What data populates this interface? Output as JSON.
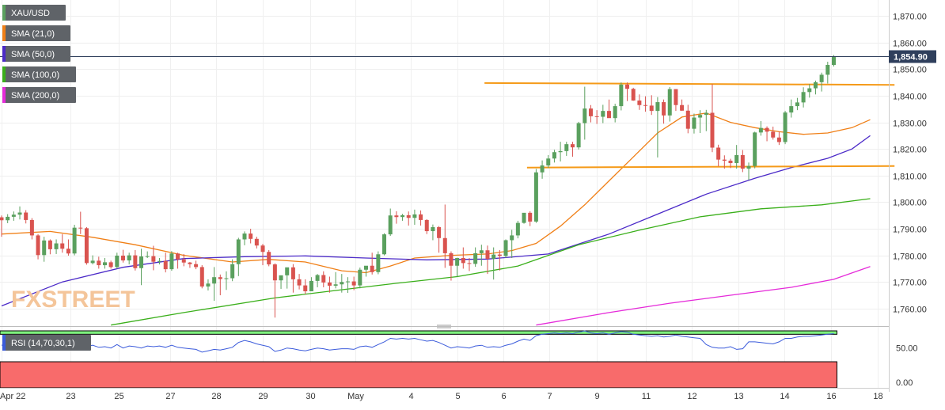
{
  "colors": {
    "bull": "#5aa05e",
    "bear": "#d9534f",
    "sma21": "#f07f16",
    "sma50": "#4b2ac8",
    "sma100": "#3aaf1a",
    "sma200": "#e52ad9",
    "rsi_line": "#3b5bdb",
    "rsi_over": "#7ef07e",
    "rsi_under": "#f86b6b",
    "price_tag": "#2f3f5c",
    "trendline": "#f59a18",
    "legend_bg": "#5f6368",
    "watermark": "#f4c59a"
  },
  "legend": [
    {
      "label": "XAU/USD",
      "color": "#5aa05e"
    },
    {
      "label": "SMA (21,0)",
      "color": "#f07f16"
    },
    {
      "label": "SMA (50,0)",
      "color": "#4b2ac8"
    },
    {
      "label": "SMA (100,0)",
      "color": "#3aaf1a"
    },
    {
      "label": "SMA (200,0)",
      "color": "#e52ad9"
    }
  ],
  "rsi_label": "RSI (14,70,30,1)",
  "watermark": "FXSTREET",
  "chart_data": {
    "type": "candlestick",
    "symbol": "XAU/USD",
    "current_price": "1,854.90",
    "current_value": 1854.9,
    "price_axis": {
      "ylim": [
        1754,
        1876
      ],
      "ticks": [
        1760,
        1770,
        1780,
        1790,
        1800,
        1810,
        1820,
        1830,
        1840,
        1850,
        1860,
        1870
      ],
      "tick_labels": [
        "1,760.00",
        "1,770.00",
        "1,780.00",
        "1,790.00",
        "1,800.00",
        "1,810.00",
        "1,820.00",
        "1,830.00",
        "1,840.00",
        "1,850.00",
        "1,860.00",
        "1,870.00"
      ]
    },
    "x_axis": {
      "labels": [
        "Apr 22",
        "23",
        "25",
        "27",
        "28",
        "29",
        "30",
        "May",
        "4",
        "5",
        "6",
        "7",
        "9",
        "11",
        "12",
        "13",
        "14",
        "16",
        "18"
      ],
      "label_index": [
        0,
        11.3,
        19.3,
        27.7,
        35.3,
        43,
        50.8,
        58.3,
        67.3,
        75,
        82.6,
        90.2,
        98,
        106,
        113.6,
        121.3,
        128.9,
        136.6,
        144.2
      ]
    },
    "candles": [
      [
        1794.3,
        1795.0,
        1787.0,
        1793.2
      ],
      [
        1793.2,
        1795.5,
        1792.1,
        1794.5
      ],
      [
        1794.5,
        1796.5,
        1793.0,
        1795.3
      ],
      [
        1795.3,
        1798.4,
        1793.5,
        1796.1
      ],
      [
        1796.1,
        1797.0,
        1792.0,
        1793.3
      ],
      [
        1793.3,
        1794.0,
        1786.0,
        1787.5
      ],
      [
        1787.5,
        1788.0,
        1778.5,
        1780.1
      ],
      [
        1780.1,
        1787.0,
        1777.6,
        1785.6
      ],
      [
        1785.6,
        1786.0,
        1780.4,
        1782.3
      ],
      [
        1782.3,
        1786.0,
        1780.5,
        1784.5
      ],
      [
        1784.5,
        1788.0,
        1781.0,
        1782.5
      ],
      [
        1782.5,
        1786.0,
        1779.9,
        1780.7
      ],
      [
        1780.7,
        1791.5,
        1780.0,
        1790.4
      ],
      [
        1790.4,
        1796.4,
        1788.0,
        1790.2
      ],
      [
        1790.2,
        1790.6,
        1776.5,
        1777.1
      ],
      [
        1777.1,
        1780.0,
        1776.6,
        1778.0
      ],
      [
        1778.0,
        1779.5,
        1775.0,
        1776.3
      ],
      [
        1776.3,
        1779.0,
        1775.0,
        1777.4
      ],
      [
        1777.4,
        1778.0,
        1775.0,
        1775.6
      ],
      [
        1775.6,
        1781.0,
        1775.0,
        1779.9
      ],
      [
        1779.9,
        1782.1,
        1777.3,
        1778.1
      ],
      [
        1778.1,
        1781.0,
        1776.6,
        1780.0
      ],
      [
        1780.0,
        1782.0,
        1774.3,
        1775.2
      ],
      [
        1775.2,
        1782.5,
        1768.8,
        1779.6
      ],
      [
        1779.6,
        1781.5,
        1779.0,
        1779.7
      ],
      [
        1779.7,
        1783.6,
        1774.4,
        1777.6
      ],
      [
        1777.6,
        1779.0,
        1776.6,
        1777.9
      ],
      [
        1777.9,
        1781.0,
        1773.6,
        1774.8
      ],
      [
        1774.8,
        1781.6,
        1774.2,
        1780.7
      ],
      [
        1780.7,
        1781.0,
        1775.0,
        1778.5
      ],
      [
        1778.5,
        1780.5,
        1775.9,
        1777.3
      ],
      [
        1777.3,
        1777.5,
        1775.3,
        1776.7
      ],
      [
        1776.7,
        1778.0,
        1774.8,
        1775.6
      ],
      [
        1775.6,
        1776.3,
        1767.6,
        1768.3
      ],
      [
        1768.3,
        1771.0,
        1766.8,
        1769.4
      ],
      [
        1769.4,
        1775.6,
        1762.9,
        1771.8
      ],
      [
        1771.8,
        1772.8,
        1765.0,
        1771.1
      ],
      [
        1771.1,
        1774.0,
        1767.0,
        1771.4
      ],
      [
        1771.4,
        1778.5,
        1770.3,
        1776.7
      ],
      [
        1776.7,
        1786.6,
        1772.2,
        1786.0
      ],
      [
        1786.0,
        1789.0,
        1783.8,
        1788.2
      ],
      [
        1788.2,
        1790.0,
        1784.5,
        1786.2
      ],
      [
        1786.2,
        1787.0,
        1782.6,
        1783.7
      ],
      [
        1783.7,
        1784.3,
        1776.3,
        1781.3
      ],
      [
        1781.3,
        1782.0,
        1775.9,
        1776.6
      ],
      [
        1776.6,
        1777.0,
        1756.6,
        1770.6
      ],
      [
        1770.6,
        1772.0,
        1767.4,
        1772.5
      ],
      [
        1772.5,
        1775.2,
        1767.5,
        1775.5
      ],
      [
        1775.5,
        1776.7,
        1766.0,
        1771.0
      ],
      [
        1771.0,
        1773.0,
        1767.2,
        1768.7
      ],
      [
        1768.7,
        1771.0,
        1765.4,
        1766.5
      ],
      [
        1766.5,
        1771.8,
        1766.6,
        1770.4
      ],
      [
        1770.4,
        1773.0,
        1768.0,
        1772.6
      ],
      [
        1772.6,
        1774.0,
        1768.0,
        1769.8
      ],
      [
        1769.8,
        1772.0,
        1766.0,
        1768.6
      ],
      [
        1768.6,
        1773.7,
        1767.6,
        1769.1
      ],
      [
        1769.1,
        1773.0,
        1766.0,
        1770.0
      ],
      [
        1770.0,
        1771.8,
        1765.9,
        1770.2
      ],
      [
        1770.2,
        1772.0,
        1766.9,
        1768.7
      ],
      [
        1768.7,
        1775.4,
        1767.6,
        1774.6
      ],
      [
        1774.6,
        1775.9,
        1772.0,
        1776.1
      ],
      [
        1776.1,
        1781.0,
        1772.8,
        1773.7
      ],
      [
        1773.7,
        1781.5,
        1772.9,
        1780.4
      ],
      [
        1780.4,
        1788.3,
        1780.0,
        1787.9
      ],
      [
        1787.9,
        1797.6,
        1787.3,
        1795.0
      ],
      [
        1795.0,
        1796.6,
        1791.9,
        1794.4
      ],
      [
        1794.4,
        1795.6,
        1793.0,
        1795.1
      ],
      [
        1795.1,
        1796.5,
        1791.2,
        1794.1
      ],
      [
        1794.1,
        1797.2,
        1791.5,
        1795.4
      ],
      [
        1795.4,
        1796.9,
        1791.2,
        1793.3
      ],
      [
        1793.3,
        1793.6,
        1788.0,
        1789.1
      ],
      [
        1789.1,
        1791.6,
        1785.7,
        1790.6
      ],
      [
        1790.6,
        1791.0,
        1781.0,
        1786.5
      ],
      [
        1786.5,
        1799.1,
        1775.3,
        1780.8
      ],
      [
        1780.8,
        1781.5,
        1770.5,
        1776.1
      ],
      [
        1776.1,
        1779.1,
        1772.0,
        1779.0
      ],
      [
        1779.0,
        1783.0,
        1775.0,
        1777.1
      ],
      [
        1777.1,
        1779.0,
        1774.1,
        1776.8
      ],
      [
        1776.8,
        1783.0,
        1775.7,
        1780.8
      ],
      [
        1780.8,
        1784.0,
        1776.1,
        1781.9
      ],
      [
        1781.9,
        1783.7,
        1773.0,
        1778.7
      ],
      [
        1778.7,
        1783.0,
        1770.9,
        1780.3
      ],
      [
        1780.3,
        1782.0,
        1774.3,
        1779.8
      ],
      [
        1779.8,
        1786.0,
        1779.0,
        1785.7
      ],
      [
        1785.7,
        1789.6,
        1779.0,
        1787.5
      ],
      [
        1787.5,
        1793.0,
        1786.4,
        1792.2
      ],
      [
        1792.2,
        1795.9,
        1791.9,
        1796.0
      ],
      [
        1796.0,
        1796.6,
        1791.0,
        1792.7
      ],
      [
        1792.7,
        1812.5,
        1792.2,
        1811.2
      ],
      [
        1811.2,
        1815.7,
        1808.8,
        1813.8
      ],
      [
        1813.8,
        1817.7,
        1812.8,
        1816.4
      ],
      [
        1816.4,
        1819.7,
        1814.9,
        1818.8
      ],
      [
        1818.8,
        1822.7,
        1815.3,
        1819.2
      ],
      [
        1819.2,
        1822.7,
        1817.4,
        1821.8
      ],
      [
        1821.8,
        1822.7,
        1817.1,
        1820.6
      ],
      [
        1820.6,
        1830.2,
        1819.8,
        1829.7
      ],
      [
        1829.7,
        1843.4,
        1823.5,
        1835.2
      ],
      [
        1835.2,
        1836.5,
        1830.0,
        1832.3
      ],
      [
        1832.3,
        1834.6,
        1829.4,
        1832.1
      ],
      [
        1832.1,
        1836.6,
        1829.7,
        1834.3
      ],
      [
        1834.3,
        1838.6,
        1832.2,
        1831.6
      ],
      [
        1831.6,
        1837.0,
        1830.0,
        1836.1
      ],
      [
        1836.1,
        1845.0,
        1834.5,
        1844.2
      ],
      [
        1844.2,
        1845.0,
        1838.0,
        1842.6
      ],
      [
        1842.6,
        1843.0,
        1838.1,
        1838.2
      ],
      [
        1838.2,
        1840.5,
        1834.7,
        1836.5
      ],
      [
        1836.5,
        1839.8,
        1834.0,
        1836.3
      ],
      [
        1836.3,
        1840.2,
        1832.8,
        1834.3
      ],
      [
        1834.3,
        1839.5,
        1816.8,
        1837.6
      ],
      [
        1837.6,
        1838.6,
        1829.5,
        1832.6
      ],
      [
        1832.6,
        1843.3,
        1830.3,
        1842.5
      ],
      [
        1842.5,
        1842.4,
        1834.3,
        1836.5
      ],
      [
        1836.5,
        1838.6,
        1834.3,
        1834.4
      ],
      [
        1834.4,
        1836.6,
        1825.9,
        1827.6
      ],
      [
        1827.6,
        1833.3,
        1825.8,
        1831.8
      ],
      [
        1831.8,
        1834.6,
        1826.0,
        1832.8
      ],
      [
        1832.8,
        1834.7,
        1826.7,
        1833.6
      ],
      [
        1833.6,
        1844.4,
        1818.8,
        1820.5
      ],
      [
        1820.5,
        1821.6,
        1813.5,
        1816.0
      ],
      [
        1816.0,
        1817.6,
        1812.6,
        1815.6
      ],
      [
        1815.6,
        1816.3,
        1812.8,
        1814.7
      ],
      [
        1814.7,
        1821.5,
        1812.6,
        1817.7
      ],
      [
        1817.7,
        1819.6,
        1811.3,
        1812.6
      ],
      [
        1812.6,
        1814.9,
        1808.3,
        1813.6
      ],
      [
        1813.6,
        1826.5,
        1812.7,
        1826.2
      ],
      [
        1826.2,
        1830.5,
        1825.0,
        1827.9
      ],
      [
        1827.9,
        1828.5,
        1822.9,
        1826.5
      ],
      [
        1826.5,
        1828.4,
        1823.5,
        1824.3
      ],
      [
        1824.3,
        1826.5,
        1821.5,
        1822.6
      ],
      [
        1822.6,
        1834.3,
        1821.8,
        1833.7
      ],
      [
        1833.7,
        1838.6,
        1831.8,
        1836.1
      ],
      [
        1836.1,
        1839.2,
        1834.6,
        1837.5
      ],
      [
        1837.5,
        1843.2,
        1835.6,
        1841.4
      ],
      [
        1841.4,
        1844.4,
        1839.3,
        1842.8
      ],
      [
        1842.8,
        1845.7,
        1840.5,
        1845.1
      ],
      [
        1845.1,
        1848.7,
        1841.6,
        1847.9
      ],
      [
        1847.9,
        1852.8,
        1844.6,
        1851.6
      ],
      [
        1851.6,
        1855.3,
        1851.0,
        1854.9
      ]
    ],
    "sma": [
      {
        "name": "SMA (21,0)",
        "color": "#f07f16",
        "points": [
          [
            0,
            1788
          ],
          [
            8,
            1789
          ],
          [
            15,
            1786.8
          ],
          [
            22,
            1784
          ],
          [
            30,
            1780
          ],
          [
            38,
            1777.5
          ],
          [
            44,
            1778.5
          ],
          [
            50,
            1777.5
          ],
          [
            56,
            1774.2
          ],
          [
            60,
            1773.5
          ],
          [
            64,
            1776
          ],
          [
            68,
            1779
          ],
          [
            74,
            1780
          ],
          [
            80,
            1780.5
          ],
          [
            84,
            1781.8
          ],
          [
            88,
            1784.5
          ],
          [
            92,
            1791
          ],
          [
            96,
            1799
          ],
          [
            100,
            1808
          ],
          [
            104,
            1817
          ],
          [
            108,
            1826
          ],
          [
            112,
            1832
          ],
          [
            116,
            1833.5
          ],
          [
            120,
            1830
          ],
          [
            124,
            1828
          ],
          [
            128,
            1826.5
          ],
          [
            132,
            1825.5
          ],
          [
            136,
            1826
          ],
          [
            140,
            1828
          ],
          [
            143,
            1831
          ]
        ]
      },
      {
        "name": "SMA (50,0)",
        "color": "#4b2ac8",
        "points": [
          [
            0,
            1761
          ],
          [
            10,
            1770
          ],
          [
            20,
            1775.5
          ],
          [
            30,
            1778.8
          ],
          [
            40,
            1779.5
          ],
          [
            50,
            1779.8
          ],
          [
            60,
            1779
          ],
          [
            70,
            1778.3
          ],
          [
            80,
            1778.6
          ],
          [
            90,
            1780.5
          ],
          [
            100,
            1788
          ],
          [
            108,
            1795.5
          ],
          [
            116,
            1803
          ],
          [
            124,
            1809
          ],
          [
            130,
            1813
          ],
          [
            136,
            1816.5
          ],
          [
            140,
            1820
          ],
          [
            143,
            1825
          ]
        ]
      },
      {
        "name": "SMA (100,0)",
        "color": "#3aaf1a",
        "points": [
          [
            18,
            1753.8
          ],
          [
            30,
            1758.5
          ],
          [
            45,
            1764
          ],
          [
            55,
            1766.8
          ],
          [
            65,
            1769.5
          ],
          [
            75,
            1772
          ],
          [
            85,
            1776
          ],
          [
            95,
            1784
          ],
          [
            105,
            1789.5
          ],
          [
            115,
            1794.5
          ],
          [
            125,
            1797.5
          ],
          [
            135,
            1799
          ],
          [
            143,
            1801.3
          ]
        ]
      },
      {
        "name": "SMA (200,0)",
        "color": "#e52ad9",
        "points": [
          [
            88,
            1753.8
          ],
          [
            100,
            1758.5
          ],
          [
            110,
            1762
          ],
          [
            120,
            1765
          ],
          [
            130,
            1768
          ],
          [
            137,
            1771
          ],
          [
            143,
            1775.8
          ]
        ]
      }
    ],
    "trendlines": [
      {
        "name": "resistance",
        "points": [
          [
            79.5,
            1844.8
          ],
          [
            147,
            1844.1
          ]
        ]
      },
      {
        "name": "support",
        "points": [
          [
            86.5,
            1813
          ],
          [
            147,
            1813.6
          ]
        ]
      }
    ],
    "rsi": {
      "name": "RSI (14,70,30,1)",
      "ylim": [
        -8,
        75
      ],
      "ticks": [
        0,
        50
      ],
      "tick_labels": [
        "0.00",
        "50.00"
      ],
      "overbought": 70,
      "oversold": 30,
      "values": [
        54,
        56,
        57,
        58,
        60,
        61,
        55,
        50,
        52,
        55,
        56,
        53,
        58,
        61,
        52,
        54,
        51,
        52,
        50,
        55,
        50,
        53,
        52,
        50,
        53,
        52,
        53,
        51,
        54,
        51,
        50,
        49,
        48,
        44,
        46,
        48,
        47,
        49,
        51,
        58,
        61,
        59,
        56,
        54,
        52,
        45,
        47,
        50,
        49,
        47,
        46,
        48,
        50,
        49,
        47,
        48,
        49,
        49,
        48,
        52,
        53,
        51,
        55,
        59,
        64,
        63,
        64,
        63,
        64,
        62,
        60,
        61,
        58,
        54,
        50,
        52,
        51,
        50,
        53,
        54,
        51,
        52,
        51,
        54,
        56,
        60,
        63,
        61,
        68,
        70,
        71,
        72,
        71,
        72,
        71,
        73,
        75,
        72,
        71,
        72,
        70,
        72,
        74,
        73,
        70,
        69,
        68,
        67,
        68,
        66,
        67,
        69,
        67,
        66,
        65,
        64,
        55,
        51,
        50,
        50,
        52,
        48,
        49,
        59,
        59,
        58,
        57,
        56,
        59,
        64,
        64,
        66,
        67,
        67,
        68,
        69,
        70,
        71
      ]
    }
  }
}
